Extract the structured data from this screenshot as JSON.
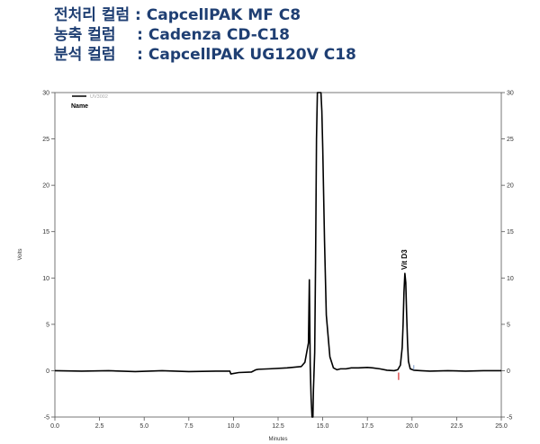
{
  "header": {
    "lines": [
      "전처리 컬럼 : CapcellPAK MF C8",
      "농축 컬럼    : Cadenza CD-C18",
      "분석 컬럼    : CapcellPAK UG120V C18"
    ]
  },
  "colors": {
    "header_text": "#1f3f73",
    "trace": "#000000",
    "integration_marks": "#cc0000"
  },
  "chart_data": {
    "type": "line",
    "title": "",
    "xlabel": "Minutes",
    "ylabel": "Volts",
    "xlim": [
      0,
      25
    ],
    "ylim": [
      -5,
      30
    ],
    "x_ticks": [
      "0.0",
      "2.5",
      "5.0",
      "7.5",
      "10.0",
      "12.5",
      "15.0",
      "17.5",
      "20.0",
      "22.5",
      "25.0"
    ],
    "y_ticks": [
      "-5",
      "0",
      "5",
      "10",
      "15",
      "20",
      "25",
      "30"
    ],
    "grid": false,
    "legend": {
      "position": "top-left",
      "channel": "UV3002",
      "label": "Name"
    },
    "annotations": [
      {
        "text": "Vit D3",
        "x": 19.6,
        "y": 10.5
      }
    ],
    "series": [
      {
        "name": "UV3002",
        "x": [
          0,
          1.5,
          3,
          4.5,
          6,
          7.5,
          9,
          9.8,
          9.85,
          10.3,
          11.0,
          11.25,
          11.4,
          12.0,
          13.0,
          13.8,
          14.0,
          14.2,
          14.25,
          14.3,
          14.35,
          14.4,
          14.45,
          14.48,
          14.55,
          14.6,
          14.65,
          14.7,
          14.75,
          14.8,
          14.85,
          14.9,
          14.95,
          15.0,
          15.1,
          15.2,
          15.4,
          15.6,
          15.8,
          16.0,
          16.3,
          16.6,
          17.0,
          17.5,
          17.8,
          18.2,
          18.6,
          19.0,
          19.2,
          19.35,
          19.45,
          19.5,
          19.55,
          19.6,
          19.65,
          19.7,
          19.75,
          19.8,
          19.9,
          20.1,
          20.5,
          21.0,
          22.0,
          23.0,
          24.0,
          25.0
        ],
        "y": [
          0.0,
          -0.05,
          0.0,
          -0.1,
          0.0,
          -0.1,
          -0.05,
          -0.05,
          -0.35,
          -0.2,
          -0.15,
          0.1,
          0.15,
          0.2,
          0.3,
          0.45,
          0.9,
          3.0,
          9.8,
          0.5,
          -3.0,
          -5.0,
          -5.0,
          -2.0,
          2.0,
          12.0,
          25.0,
          30.0,
          30.0,
          30.0,
          30.0,
          30.0,
          28.0,
          24.0,
          14.0,
          6.0,
          1.5,
          0.3,
          0.1,
          0.2,
          0.2,
          0.3,
          0.3,
          0.35,
          0.3,
          0.2,
          0.05,
          0.0,
          0.1,
          0.6,
          2.5,
          5.0,
          8.5,
          10.5,
          9.5,
          6.0,
          3.0,
          1.0,
          0.2,
          0.05,
          0.0,
          -0.05,
          0.0,
          -0.05,
          0.0,
          0.0
        ]
      }
    ]
  }
}
